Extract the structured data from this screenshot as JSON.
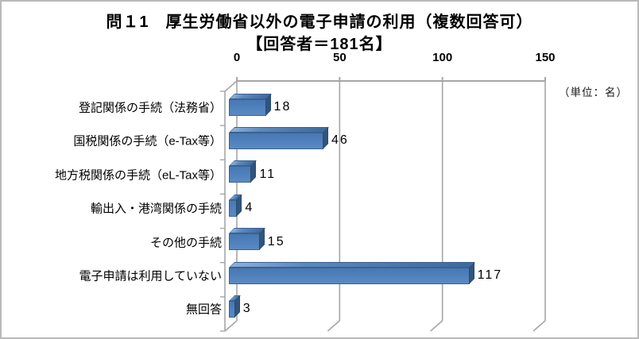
{
  "window": {
    "background": "#ffffff",
    "border_color": "#b9b9b9"
  },
  "chart_data": {
    "type": "bar",
    "orientation": "horizontal",
    "style": "3d",
    "title": "問１1　厚生労働省以外の電子申請の利用（複数回答可）",
    "subtitle": "【回答者＝181名】",
    "unit_label": "（単位：名）",
    "categories": [
      "登記関係の手続（法務省）",
      "国税関係の手続（e-Tax等）",
      "地方税関係の手続（eL-Tax等）",
      "輸出入・港湾関係の手続",
      "その他の手続",
      "電子申請は利用していない",
      "無回答"
    ],
    "values": [
      18,
      46,
      11,
      4,
      15,
      117,
      3
    ],
    "value_axis": {
      "position": "top",
      "min": 0,
      "max": 150,
      "ticks": [
        0,
        50,
        100,
        150
      ]
    },
    "grid": true,
    "legend": "none",
    "bar_color": "#4f81bd",
    "bar_side_color": "#30557e",
    "gridline_color": "#a6a6a6",
    "text_color": "#000000"
  }
}
